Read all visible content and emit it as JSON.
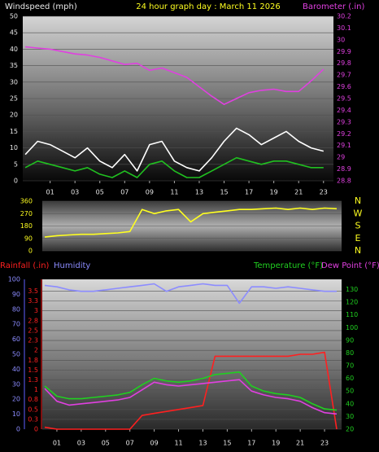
{
  "chart_data": [
    {
      "type": "line",
      "title": "24 hour graph day : March 11 2026",
      "x": [
        -1,
        0,
        1,
        2,
        3,
        4,
        5,
        6,
        7,
        8,
        9,
        10,
        11,
        12,
        13,
        14,
        15,
        16,
        17,
        18,
        19,
        20,
        21,
        22,
        23
      ],
      "xlim": [
        -1.2,
        23.8
      ],
      "xticks": [
        {
          "value": 1,
          "label": "01"
        },
        {
          "value": 3,
          "label": "03"
        },
        {
          "value": 5,
          "label": "05"
        },
        {
          "value": 7,
          "label": "07"
        },
        {
          "value": 9,
          "label": "09"
        },
        11,
        13,
        15,
        17,
        19,
        21,
        23
      ],
      "ylim": [
        0,
        50
      ],
      "yticks": [
        0,
        5,
        10,
        15,
        20,
        25,
        30,
        35,
        40,
        45,
        50
      ],
      "y2lim": [
        28.8,
        30.2
      ],
      "y2ticks": [
        28.8,
        28.9,
        29,
        29.1,
        29.2,
        29.3,
        29.4,
        29.5,
        29.6,
        29.7,
        29.8,
        29.9,
        30,
        30.1,
        30.2
      ],
      "grid": true,
      "series": [
        {
          "name": "Windspeed (mph)",
          "color": "#ffffff",
          "values": [
            8,
            12,
            11,
            9,
            7,
            10,
            6,
            4,
            8,
            3,
            11,
            12,
            6,
            4,
            3,
            7,
            12,
            16,
            14,
            11,
            13,
            15,
            12,
            10,
            9
          ]
        },
        {
          "color": "#20c020",
          "values": [
            4,
            6,
            5,
            4,
            3,
            4,
            2,
            1,
            3,
            1,
            5,
            6,
            3,
            1,
            1,
            3,
            5,
            7,
            6,
            5,
            6,
            6,
            5,
            4,
            4
          ]
        },
        {
          "name": "Barometer (.in)",
          "color": "#e040e0",
          "axis": "y2",
          "values": [
            29.94,
            29.93,
            29.92,
            29.9,
            29.88,
            29.87,
            29.85,
            29.82,
            29.79,
            29.8,
            29.74,
            29.76,
            29.72,
            29.68,
            29.6,
            29.52,
            29.45,
            29.5,
            29.55,
            29.57,
            29.58,
            29.56,
            29.56,
            29.65,
            29.75
          ]
        }
      ]
    },
    {
      "type": "line",
      "x": [
        0,
        1,
        2,
        3,
        4,
        5,
        6,
        7,
        8,
        9,
        10,
        11,
        12,
        13,
        14,
        15,
        16,
        17,
        18,
        19,
        20,
        21,
        22,
        23,
        24
      ],
      "xlim": [
        -0.2,
        24.4
      ],
      "ylim": [
        0,
        360
      ],
      "yticks": [
        0,
        90,
        180,
        270,
        360
      ],
      "y2lim": [
        0,
        360
      ],
      "y2ticks": [
        {
          "value": 360,
          "label": "N"
        },
        {
          "value": 270,
          "label": "W"
        },
        {
          "value": 180,
          "label": "S"
        },
        {
          "value": 90,
          "label": "E"
        },
        {
          "value": 0,
          "label": "N"
        }
      ],
      "grid": true,
      "series": [
        {
          "color": "#ffff20",
          "values": [
            100,
            110,
            115,
            120,
            120,
            125,
            130,
            140,
            300,
            270,
            290,
            300,
            210,
            270,
            280,
            290,
            300,
            300,
            305,
            310,
            300,
            310,
            300,
            310,
            305
          ]
        }
      ]
    },
    {
      "type": "line",
      "x": [
        0,
        1,
        2,
        3,
        4,
        5,
        6,
        7,
        8,
        9,
        10,
        11,
        12,
        13,
        14,
        15,
        16,
        17,
        18,
        19,
        20,
        21,
        22,
        23,
        24
      ],
      "xlim": [
        -0.2,
        24.4
      ],
      "xticks": [
        {
          "value": 1,
          "label": "01"
        },
        {
          "value": 3,
          "label": "03"
        },
        {
          "value": 5,
          "label": "05"
        },
        {
          "value": 7,
          "label": "07"
        },
        {
          "value": 9,
          "label": "09"
        },
        11,
        13,
        15,
        17,
        19,
        21,
        23
      ],
      "ylim": [
        0,
        3.8
      ],
      "yticks": [
        0,
        {
          "value": 0.25,
          "label": "0.3"
        },
        0.5,
        {
          "value": 0.75,
          "label": "0.8"
        },
        1,
        {
          "value": 1.25,
          "label": "1.3"
        },
        1.5,
        {
          "value": 1.75,
          "label": "1.8"
        },
        2,
        {
          "value": 2.25,
          "label": "2.3"
        },
        2.5,
        {
          "value": 2.75,
          "label": "2.8"
        },
        3,
        {
          "value": 3.25,
          "label": "3.3"
        },
        3.5
      ],
      "y3lim": [
        0,
        100
      ],
      "y3ticks": [
        0,
        10,
        20,
        30,
        40,
        50,
        60,
        70,
        80,
        90,
        100
      ],
      "y2lim": [
        20,
        138
      ],
      "y2ticks": [
        20,
        30,
        40,
        50,
        60,
        70,
        80,
        90,
        100,
        110,
        120,
        130
      ],
      "grid": true,
      "series": [
        {
          "name": "Rainfall (.in)",
          "color": "#ff2020",
          "values": [
            0.05,
            0,
            0,
            0,
            0,
            0,
            0,
            0,
            0.35,
            0.4,
            0.45,
            0.5,
            0.55,
            0.6,
            1.85,
            1.85,
            1.85,
            1.85,
            1.85,
            1.85,
            1.85,
            1.9,
            1.9,
            1.95,
            0
          ]
        },
        {
          "name": "Humidity",
          "color": "#8c8cff",
          "axis": "y3",
          "values": [
            96,
            95,
            93,
            92,
            92,
            93,
            94,
            95,
            96,
            97,
            92,
            95,
            96,
            97,
            96,
            96,
            84,
            95,
            95,
            94,
            95,
            94,
            93,
            92,
            92
          ]
        },
        {
          "name": "Temperature (°F)",
          "color": "#20d020",
          "axis": "y2",
          "values": [
            54,
            46,
            44,
            44,
            45,
            46,
            47,
            49,
            55,
            60,
            58,
            57,
            58,
            60,
            63,
            64,
            65,
            54,
            50,
            48,
            47,
            45,
            40,
            36,
            35
          ]
        },
        {
          "name": "Dew Point (°F)",
          "color": "#e040e0",
          "axis": "y2",
          "values": [
            52,
            42,
            39,
            40,
            41,
            42,
            43,
            45,
            51,
            57,
            55,
            54,
            55,
            56,
            57,
            58,
            59,
            50,
            47,
            45,
            44,
            42,
            37,
            33,
            32
          ]
        }
      ]
    }
  ]
}
